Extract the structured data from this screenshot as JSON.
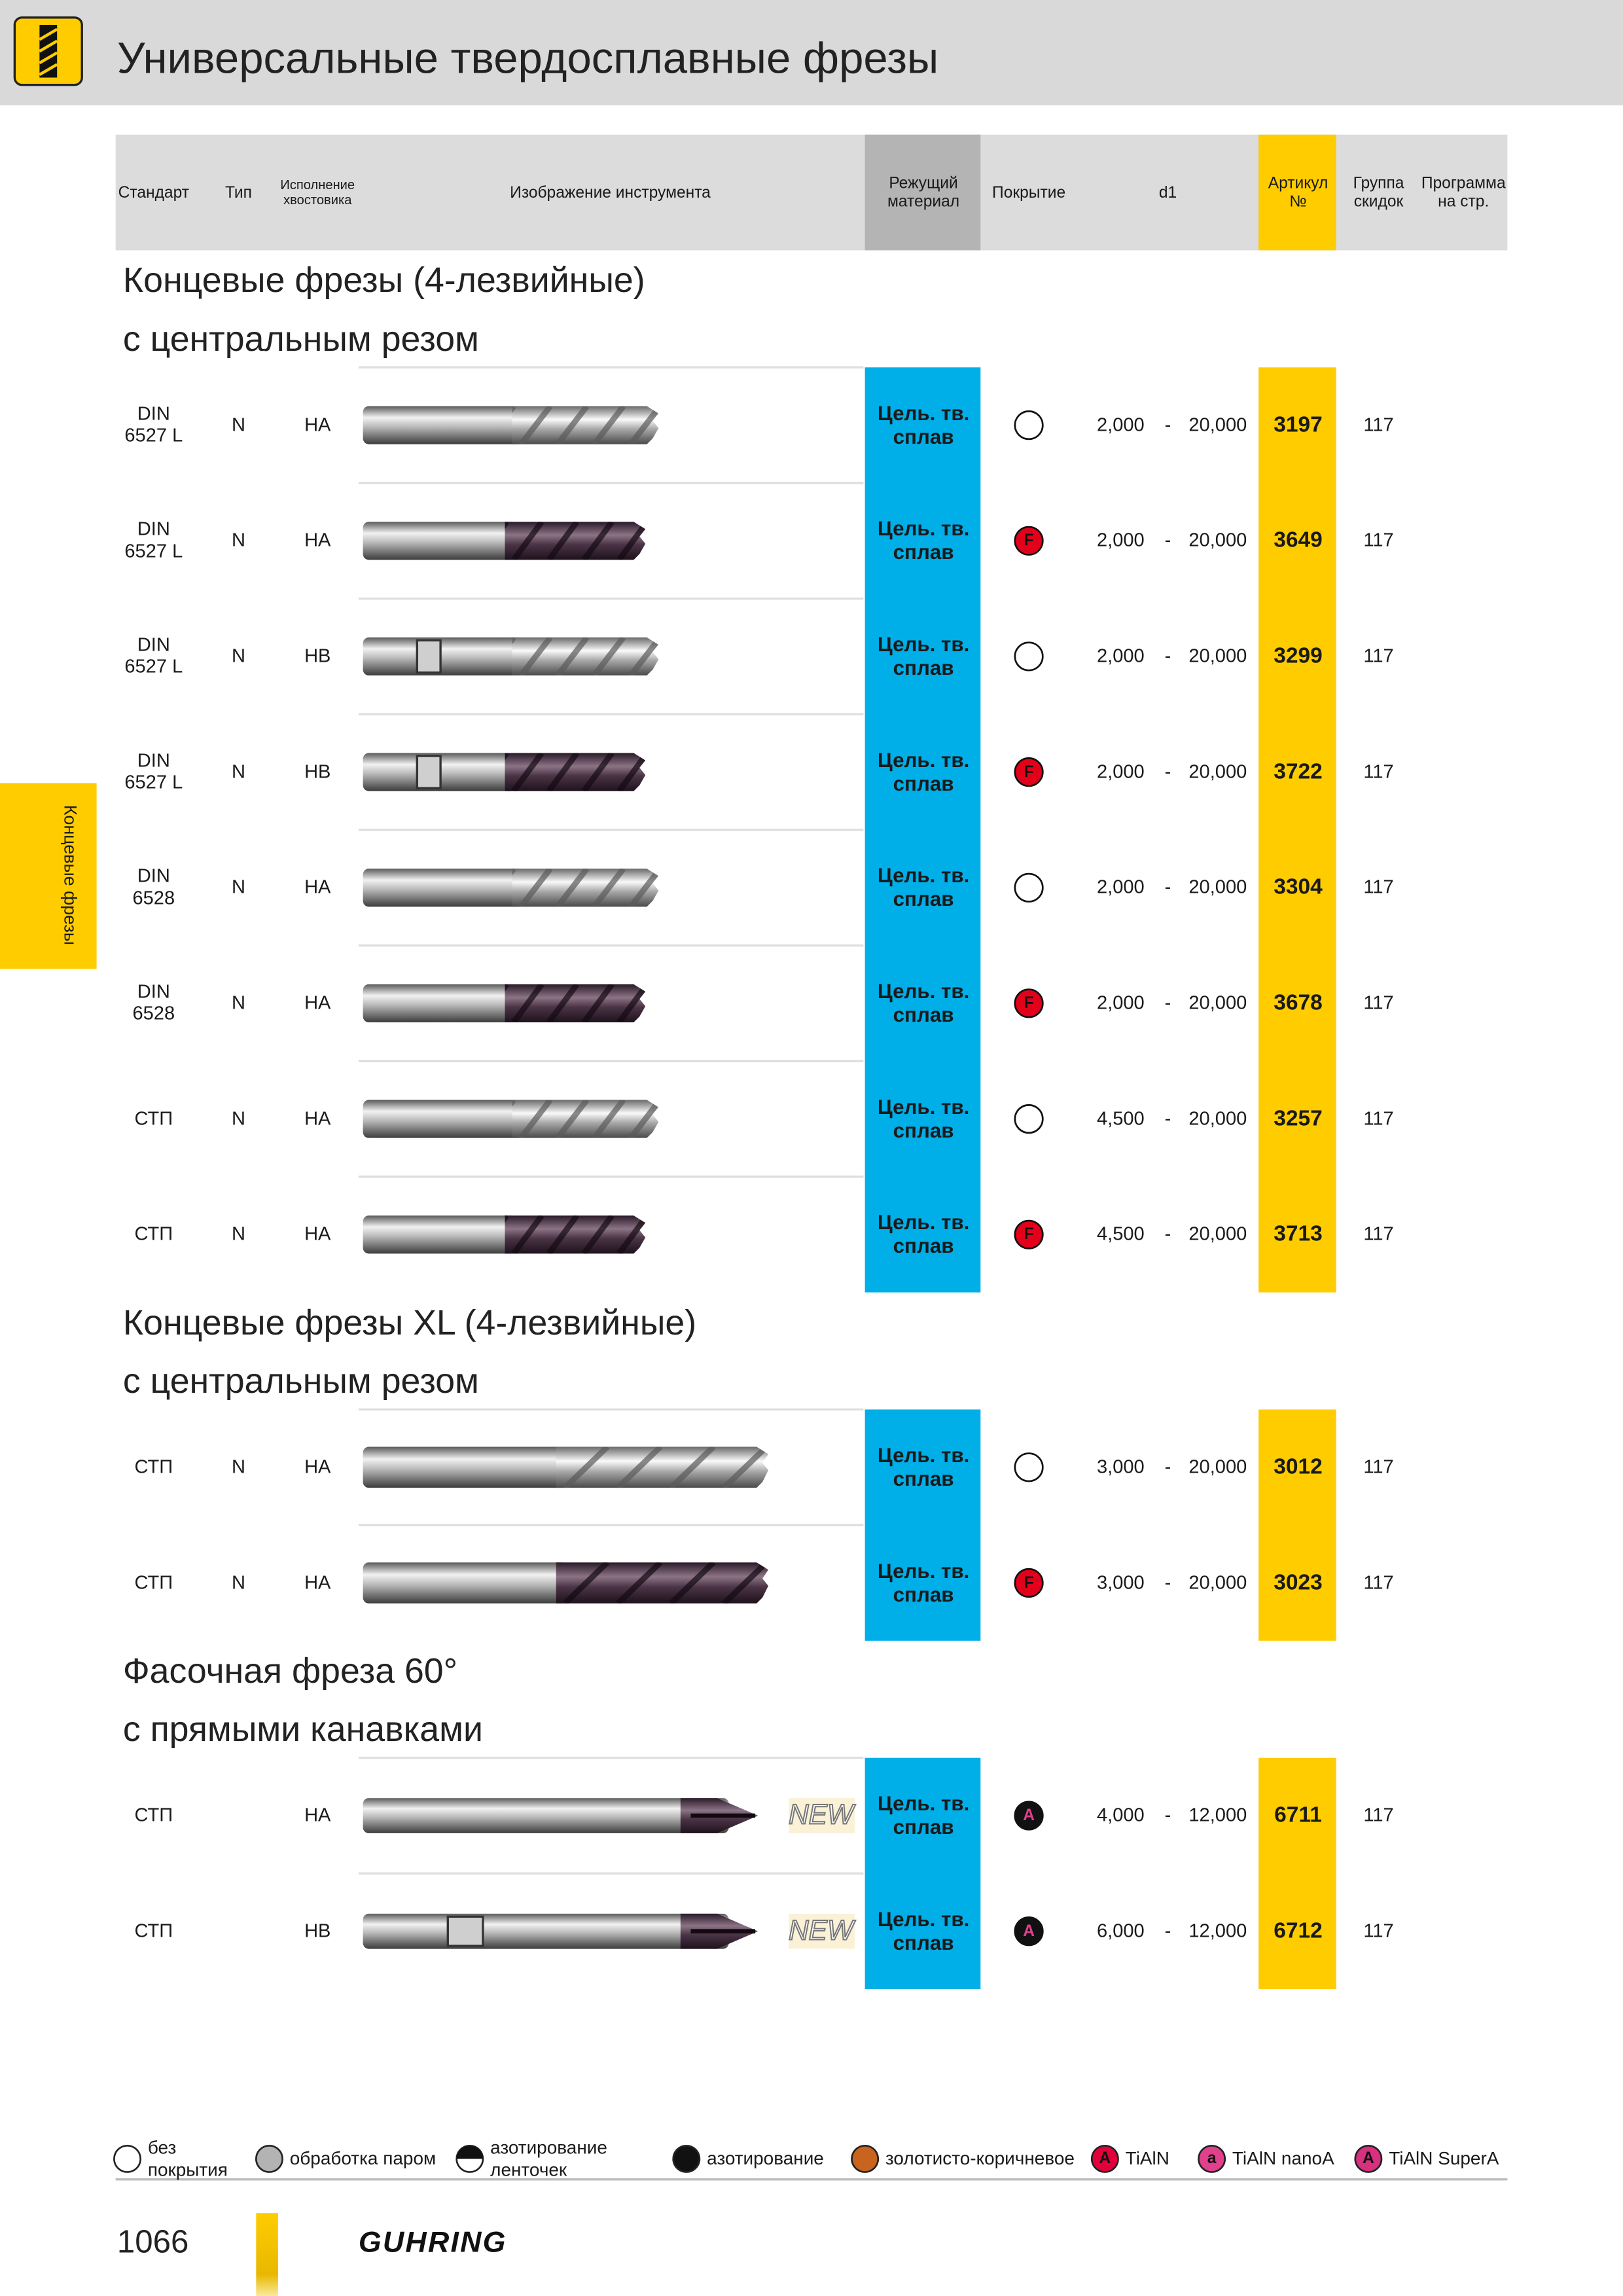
{
  "header": {
    "title": "Универсальные твердосплавные фрезы"
  },
  "side_tab": "Концевые фрезы",
  "table": {
    "columns": [
      "Стандарт",
      "Тип",
      "Исполнение хвостовика",
      "Изображение инструмента",
      "Режущий материал",
      "Покрытие",
      "d1",
      "Артикул №",
      "Группа скидок",
      "Программа на стр."
    ],
    "d1_separator": "-",
    "sections": [
      {
        "title": "Концевые  фрезы (4-лезвийные)",
        "subtitle": "с центральным резом",
        "tool": "end-mill",
        "rows": [
          {
            "standard": "DIN 6527 L",
            "type": "N",
            "shank": "HA",
            "material": "Цель. тв. сплав",
            "coating_icon": "empty",
            "d1_min": "2,000",
            "d1_max": "20,000",
            "article": "3197",
            "group": "117"
          },
          {
            "standard": "DIN 6527 L",
            "type": "N",
            "shank": "HA",
            "material": "Цель. тв. сплав",
            "coating_icon": "red",
            "coating_letter": "F",
            "d1_min": "2,000",
            "d1_max": "20,000",
            "article": "3649",
            "group": "117"
          },
          {
            "standard": "DIN 6527 L",
            "type": "N",
            "shank": "HB",
            "material": "Цель. тв. сплав",
            "coating_icon": "empty",
            "d1_min": "2,000",
            "d1_max": "20,000",
            "article": "3299",
            "group": "117",
            "flat": true
          },
          {
            "standard": "DIN 6527 L",
            "type": "N",
            "shank": "HB",
            "material": "Цель. тв. сплав",
            "coating_icon": "red",
            "coating_letter": "F",
            "d1_min": "2,000",
            "d1_max": "20,000",
            "article": "3722",
            "group": "117",
            "flat": true
          },
          {
            "standard": "DIN 6528",
            "type": "N",
            "shank": "HA",
            "material": "Цель. тв. сплав",
            "coating_icon": "empty",
            "d1_min": "2,000",
            "d1_max": "20,000",
            "article": "3304",
            "group": "117"
          },
          {
            "standard": "DIN 6528",
            "type": "N",
            "shank": "HA",
            "material": "Цель. тв. сплав",
            "coating_icon": "red",
            "coating_letter": "F",
            "d1_min": "2,000",
            "d1_max": "20,000",
            "article": "3678",
            "group": "117"
          },
          {
            "standard": "СТП",
            "type": "N",
            "shank": "HA",
            "material": "Цель. тв. сплав",
            "coating_icon": "empty",
            "d1_min": "4,500",
            "d1_max": "20,000",
            "article": "3257",
            "group": "117"
          },
          {
            "standard": "СТП",
            "type": "N",
            "shank": "HA",
            "material": "Цель. тв. сплав",
            "coating_icon": "red",
            "coating_letter": "F",
            "d1_min": "4,500",
            "d1_max": "20,000",
            "article": "3713",
            "group": "117"
          }
        ]
      },
      {
        "title": "Концевые фрезы XL (4-лезвийные)",
        "subtitle": "с центральным резом",
        "tool": "end-mill-xl",
        "rows": [
          {
            "standard": "СТП",
            "type": "N",
            "shank": "HA",
            "material": "Цель. тв. сплав",
            "coating_icon": "empty",
            "d1_min": "3,000",
            "d1_max": "20,000",
            "article": "3012",
            "group": "117"
          },
          {
            "standard": "СТП",
            "type": "N",
            "shank": "HA",
            "material": "Цель. тв. сплав",
            "coating_icon": "red",
            "coating_letter": "F",
            "d1_min": "3,000",
            "d1_max": "20,000",
            "article": "3023",
            "group": "117"
          }
        ]
      },
      {
        "title": "Фасочная фреза 60°",
        "subtitle": "с прямыми канавками",
        "tool": "chamfer",
        "rows": [
          {
            "standard": "СТП",
            "shank": "HA",
            "badge": "NEW",
            "material": "Цель. тв. сплав",
            "coating_icon": "dark",
            "coating_letter": "A",
            "d1_min": "4,000",
            "d1_max": "12,000",
            "article": "6711",
            "group": "117"
          },
          {
            "standard": "СТП",
            "shank": "HB",
            "badge": "NEW",
            "material": "Цель. тв. сплав",
            "coating_icon": "dark",
            "coating_letter": "A",
            "d1_min": "6,000",
            "d1_max": "12,000",
            "article": "6712",
            "group": "117",
            "flat": true
          }
        ]
      }
    ]
  },
  "legend": [
    {
      "icon": "empty",
      "label": "без покрытия"
    },
    {
      "icon": "gray",
      "label": "обработка паром"
    },
    {
      "icon": "half",
      "label": "азотирование ленточек"
    },
    {
      "icon": "black",
      "label": "азотирование"
    },
    {
      "icon": "brown",
      "label": "золотисто-коричневое"
    },
    {
      "icon": "letter",
      "letter": "A",
      "color": "#e2003a",
      "label": "TiAlN"
    },
    {
      "icon": "letter",
      "letter": "a",
      "color": "#e0408c",
      "label": "TiAlN nanoA"
    },
    {
      "icon": "letter",
      "letter": "A",
      "color": "#d6307e",
      "label": "TiAlN SuperA"
    }
  ],
  "footer": {
    "page": "1066",
    "brand": "GUHRING"
  }
}
